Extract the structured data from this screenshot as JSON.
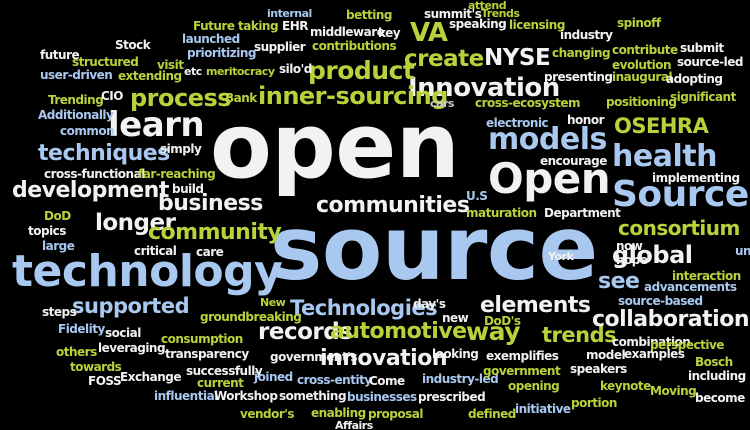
{
  "colors": {
    "background": "#000000",
    "white": "#f2f2f2",
    "light_blue": "#a9c8f0",
    "yellow_green": "#b7d23a",
    "olive": "#8aa02a",
    "gray": "#c9c9c9"
  },
  "words": [
    {
      "text": "open",
      "color": "white"
    },
    {
      "text": "source",
      "color": "light_blue"
    },
    {
      "text": "technology",
      "color": "light_blue"
    },
    {
      "text": "Open",
      "color": "white"
    },
    {
      "text": "Source",
      "color": "light_blue"
    },
    {
      "text": "health",
      "color": "light_blue"
    },
    {
      "text": "models",
      "color": "light_blue"
    },
    {
      "text": "learn",
      "color": "white"
    },
    {
      "text": "Innovation",
      "color": "white"
    },
    {
      "text": "product",
      "color": "yellow_green"
    },
    {
      "text": "create",
      "color": "yellow_green"
    },
    {
      "text": "NYSE",
      "color": "white"
    },
    {
      "text": "VA",
      "color": "yellow_green"
    },
    {
      "text": "process",
      "color": "yellow_green"
    },
    {
      "text": "inner-sourcing",
      "color": "yellow_green"
    },
    {
      "text": "techniques",
      "color": "light_blue"
    },
    {
      "text": "development",
      "color": "white"
    },
    {
      "text": "longer",
      "color": "white"
    },
    {
      "text": "business",
      "color": "white"
    },
    {
      "text": "communities",
      "color": "white"
    },
    {
      "text": "community",
      "color": "yellow_green"
    },
    {
      "text": "consortium",
      "color": "yellow_green"
    },
    {
      "text": "global",
      "color": "white"
    },
    {
      "text": "OSEHRA",
      "color": "yellow_green"
    },
    {
      "text": "supported",
      "color": "light_blue"
    },
    {
      "text": "records",
      "color": "white"
    },
    {
      "text": "automotive",
      "color": "yellow_green"
    },
    {
      "text": "Technologies",
      "color": "light_blue"
    },
    {
      "text": "elements",
      "color": "white"
    },
    {
      "text": "way",
      "color": "yellow_green"
    },
    {
      "text": "trends",
      "color": "yellow_green"
    },
    {
      "text": "see",
      "color": "light_blue"
    },
    {
      "text": "collaboration",
      "color": "white"
    },
    {
      "text": "innovation",
      "color": "white"
    },
    {
      "text": "Future",
      "color": "yellow_green"
    },
    {
      "text": "taking",
      "color": "yellow_green"
    },
    {
      "text": "EHR",
      "color": "white"
    },
    {
      "text": "internal",
      "color": "light_blue"
    },
    {
      "text": "betting",
      "color": "yellow_green"
    },
    {
      "text": "summit's",
      "color": "white"
    },
    {
      "text": "attend",
      "color": "yellow_green"
    },
    {
      "text": "Trends",
      "color": "yellow_green"
    },
    {
      "text": "speaking",
      "color": "white"
    },
    {
      "text": "licensing",
      "color": "yellow_green"
    },
    {
      "text": "spinoff",
      "color": "yellow_green"
    },
    {
      "text": "future",
      "color": "white"
    },
    {
      "text": "Stock",
      "color": "white"
    },
    {
      "text": "launched",
      "color": "light_blue"
    },
    {
      "text": "supplier",
      "color": "white"
    },
    {
      "text": "middleware",
      "color": "white"
    },
    {
      "text": "key",
      "color": "white"
    },
    {
      "text": "industry",
      "color": "white"
    },
    {
      "text": "contribute",
      "color": "yellow_green"
    },
    {
      "text": "submit",
      "color": "white"
    },
    {
      "text": "structured",
      "color": "yellow_green"
    },
    {
      "text": "prioritizing",
      "color": "light_blue"
    },
    {
      "text": "contributions",
      "color": "yellow_green"
    },
    {
      "text": "changing",
      "color": "yellow_green"
    },
    {
      "text": "evolution",
      "color": "yellow_green"
    },
    {
      "text": "source-led",
      "color": "white"
    },
    {
      "text": "user-driven",
      "color": "light_blue"
    },
    {
      "text": "extending",
      "color": "yellow_green"
    },
    {
      "text": "visit",
      "color": "yellow_green"
    },
    {
      "text": "etc",
      "color": "white"
    },
    {
      "text": "meritocracy",
      "color": "yellow_green"
    },
    {
      "text": "silo'd",
      "color": "white"
    },
    {
      "text": "presenting",
      "color": "white"
    },
    {
      "text": "inaugural",
      "color": "yellow_green"
    },
    {
      "text": "adopting",
      "color": "white"
    },
    {
      "text": "Trending",
      "color": "yellow_green"
    },
    {
      "text": "CIO",
      "color": "white"
    },
    {
      "text": "Bank",
      "color": "yellow_green"
    },
    {
      "text": "cars",
      "color": "gray"
    },
    {
      "text": "cross-ecosystem",
      "color": "yellow_green"
    },
    {
      "text": "positioning",
      "color": "yellow_green"
    },
    {
      "text": "significant",
      "color": "yellow_green"
    },
    {
      "text": "Additionally",
      "color": "light_blue"
    },
    {
      "text": "common",
      "color": "light_blue"
    },
    {
      "text": "electronic",
      "color": "light_blue"
    },
    {
      "text": "honor",
      "color": "white"
    },
    {
      "text": "simply",
      "color": "white"
    },
    {
      "text": "encourage",
      "color": "white"
    },
    {
      "text": "cross-functional",
      "color": "white"
    },
    {
      "text": "far-reaching",
      "color": "yellow_green"
    },
    {
      "text": "implementing",
      "color": "white"
    },
    {
      "text": "build",
      "color": "white"
    },
    {
      "text": "U.S",
      "color": "light_blue"
    },
    {
      "text": "maturation",
      "color": "yellow_green"
    },
    {
      "text": "Department",
      "color": "white"
    },
    {
      "text": "DoD",
      "color": "yellow_green"
    },
    {
      "text": "topics",
      "color": "white"
    },
    {
      "text": "large",
      "color": "light_blue"
    },
    {
      "text": "critical",
      "color": "white"
    },
    {
      "text": "care",
      "color": "white"
    },
    {
      "text": "now",
      "color": "white"
    },
    {
      "text": "hope",
      "color": "white"
    },
    {
      "text": "unit",
      "color": "light_blue"
    },
    {
      "text": "York",
      "color": "white"
    },
    {
      "text": "interaction",
      "color": "yellow_green"
    },
    {
      "text": "advancements",
      "color": "light_blue"
    },
    {
      "text": "source-based",
      "color": "light_blue"
    },
    {
      "text": "steps",
      "color": "white"
    },
    {
      "text": "New",
      "color": "yellow_green"
    },
    {
      "text": "groundbreaking",
      "color": "yellow_green"
    },
    {
      "text": "day's",
      "color": "white"
    },
    {
      "text": "new",
      "color": "white"
    },
    {
      "text": "Fidelity",
      "color": "light_blue"
    },
    {
      "text": "social",
      "color": "white"
    },
    {
      "text": "leveraging",
      "color": "white"
    },
    {
      "text": "consumption",
      "color": "yellow_green"
    },
    {
      "text": "DoD's",
      "color": "yellow_green"
    },
    {
      "text": "combination",
      "color": "white"
    },
    {
      "text": "perspective",
      "color": "yellow_green"
    },
    {
      "text": "others",
      "color": "yellow_green"
    },
    {
      "text": "transparency",
      "color": "white"
    },
    {
      "text": "government's",
      "color": "white"
    },
    {
      "text": "looking",
      "color": "white"
    },
    {
      "text": "exemplifies",
      "color": "white"
    },
    {
      "text": "model",
      "color": "white"
    },
    {
      "text": "examples",
      "color": "white"
    },
    {
      "text": "towards",
      "color": "yellow_green"
    },
    {
      "text": "FOSS",
      "color": "white"
    },
    {
      "text": "Exchange",
      "color": "white"
    },
    {
      "text": "successfully",
      "color": "white"
    },
    {
      "text": "current",
      "color": "yellow_green"
    },
    {
      "text": "joined",
      "color": "light_blue"
    },
    {
      "text": "cross-entity",
      "color": "light_blue"
    },
    {
      "text": "Come",
      "color": "white"
    },
    {
      "text": "industry-led",
      "color": "light_blue"
    },
    {
      "text": "government",
      "color": "yellow_green"
    },
    {
      "text": "speakers",
      "color": "white"
    },
    {
      "text": "Bosch",
      "color": "yellow_green"
    },
    {
      "text": "including",
      "color": "white"
    },
    {
      "text": "opening",
      "color": "yellow_green"
    },
    {
      "text": "keynote",
      "color": "yellow_green"
    },
    {
      "text": "influential",
      "color": "light_blue"
    },
    {
      "text": "Workshop",
      "color": "white"
    },
    {
      "text": "something",
      "color": "white"
    },
    {
      "text": "businesses",
      "color": "light_blue"
    },
    {
      "text": "prescribed",
      "color": "white"
    },
    {
      "text": "Moving",
      "color": "yellow_green"
    },
    {
      "text": "become",
      "color": "white"
    },
    {
      "text": "vendor's",
      "color": "yellow_green"
    },
    {
      "text": "enabling",
      "color": "yellow_green"
    },
    {
      "text": "proposal",
      "color": "yellow_green"
    },
    {
      "text": "defined",
      "color": "yellow_green"
    },
    {
      "text": "initiative",
      "color": "light_blue"
    },
    {
      "text": "portion",
      "color": "yellow_green"
    },
    {
      "text": "Affairs",
      "color": "white"
    }
  ]
}
